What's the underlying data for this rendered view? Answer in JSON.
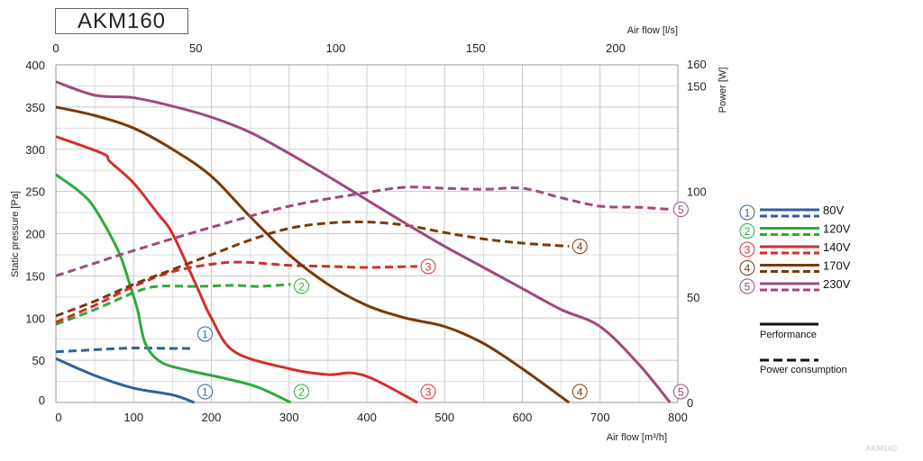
{
  "chart_data": {
    "type": "line",
    "title": "AKM160",
    "watermark": "AKM160",
    "xlabel": "Air flow [m³/h]",
    "xlabel_top": "Air flow [l/s]",
    "ylabel": "Static pressure [Pa]",
    "ylabel_right": "Power [W]",
    "xlim": [
      0,
      800
    ],
    "ylim": [
      0,
      400
    ],
    "x2lim_ls": [
      0,
      222.2
    ],
    "y2lim": [
      0,
      160
    ],
    "x_ticks": [
      0,
      100,
      200,
      300,
      400,
      500,
      600,
      700,
      800
    ],
    "x_top_ticks": [
      0,
      50,
      100,
      150,
      200
    ],
    "y_ticks": [
      0,
      50,
      100,
      150,
      200,
      250,
      300,
      350,
      400
    ],
    "y_right_ticks": [
      0,
      50,
      100,
      150,
      160
    ],
    "grid": true,
    "legend_position": "right",
    "legend_style_labels": {
      "solid": "Performance",
      "dashed": "Power consumption"
    },
    "series": [
      {
        "id": "1",
        "name": "80V",
        "color": "#2f5fa0",
        "performance": [
          [
            0,
            52
          ],
          [
            50,
            32
          ],
          [
            100,
            17
          ],
          [
            150,
            9
          ],
          [
            178,
            0
          ]
        ],
        "power": [
          [
            0,
            24
          ],
          [
            50,
            25
          ],
          [
            100,
            25.8
          ],
          [
            150,
            25.6
          ],
          [
            178,
            25.6
          ]
        ]
      },
      {
        "id": "2",
        "name": "120V",
        "color": "#2eaa3a",
        "performance": [
          [
            0,
            270
          ],
          [
            30,
            250
          ],
          [
            50,
            230
          ],
          [
            80,
            180
          ],
          [
            95,
            140
          ],
          [
            105,
            110
          ],
          [
            115,
            70
          ],
          [
            135,
            48
          ],
          [
            170,
            38
          ],
          [
            220,
            28
          ],
          [
            260,
            18
          ],
          [
            302,
            0
          ]
        ],
        "power": [
          [
            0,
            37
          ],
          [
            50,
            44
          ],
          [
            100,
            52
          ],
          [
            130,
            55
          ],
          [
            180,
            55
          ],
          [
            230,
            55.5
          ],
          [
            260,
            55
          ],
          [
            302,
            56
          ]
        ]
      },
      {
        "id": "3",
        "name": "140V",
        "color": "#d22f2a",
        "performance": [
          [
            0,
            315
          ],
          [
            60,
            295
          ],
          [
            70,
            285
          ],
          [
            100,
            260
          ],
          [
            130,
            225
          ],
          [
            150,
            200
          ],
          [
            180,
            140
          ],
          [
            200,
            100
          ],
          [
            230,
            60
          ],
          [
            300,
            40
          ],
          [
            350,
            33
          ],
          [
            380,
            35
          ],
          [
            410,
            27
          ],
          [
            465,
            0
          ]
        ],
        "power": [
          [
            0,
            38
          ],
          [
            50,
            46
          ],
          [
            100,
            55
          ],
          [
            150,
            62
          ],
          [
            200,
            65.5
          ],
          [
            240,
            66.5
          ],
          [
            300,
            65
          ],
          [
            350,
            64.5
          ],
          [
            400,
            64
          ],
          [
            465,
            64.5
          ]
        ]
      },
      {
        "id": "4",
        "name": "170V",
        "color": "#7a3a0a",
        "performance": [
          [
            0,
            350
          ],
          [
            50,
            340
          ],
          [
            100,
            325
          ],
          [
            150,
            300
          ],
          [
            200,
            268
          ],
          [
            250,
            220
          ],
          [
            300,
            175
          ],
          [
            350,
            140
          ],
          [
            400,
            115
          ],
          [
            450,
            100
          ],
          [
            500,
            90
          ],
          [
            550,
            70
          ],
          [
            600,
            40
          ],
          [
            660,
            0
          ]
        ],
        "power": [
          [
            0,
            41
          ],
          [
            50,
            48
          ],
          [
            100,
            56
          ],
          [
            150,
            63
          ],
          [
            200,
            70
          ],
          [
            250,
            77
          ],
          [
            300,
            82.5
          ],
          [
            350,
            85
          ],
          [
            400,
            85.5
          ],
          [
            450,
            84
          ],
          [
            500,
            80.5
          ],
          [
            550,
            77.5
          ],
          [
            600,
            75.5
          ],
          [
            660,
            74
          ]
        ]
      },
      {
        "id": "5",
        "name": "230V",
        "color": "#a0487f",
        "performance": [
          [
            0,
            380
          ],
          [
            50,
            364
          ],
          [
            100,
            361
          ],
          [
            150,
            351
          ],
          [
            200,
            338
          ],
          [
            250,
            320
          ],
          [
            300,
            295
          ],
          [
            350,
            268
          ],
          [
            400,
            240
          ],
          [
            450,
            212
          ],
          [
            500,
            185
          ],
          [
            550,
            160
          ],
          [
            600,
            135
          ],
          [
            650,
            110
          ],
          [
            700,
            90
          ],
          [
            750,
            45
          ],
          [
            790,
            0
          ]
        ],
        "power": [
          [
            0,
            60
          ],
          [
            50,
            66
          ],
          [
            100,
            72
          ],
          [
            200,
            83
          ],
          [
            300,
            93
          ],
          [
            400,
            99.5
          ],
          [
            450,
            102
          ],
          [
            500,
            101.5
          ],
          [
            550,
            101
          ],
          [
            600,
            101.5
          ],
          [
            650,
            97
          ],
          [
            700,
            93
          ],
          [
            750,
            92.5
          ],
          [
            790,
            91.5
          ]
        ]
      }
    ]
  }
}
